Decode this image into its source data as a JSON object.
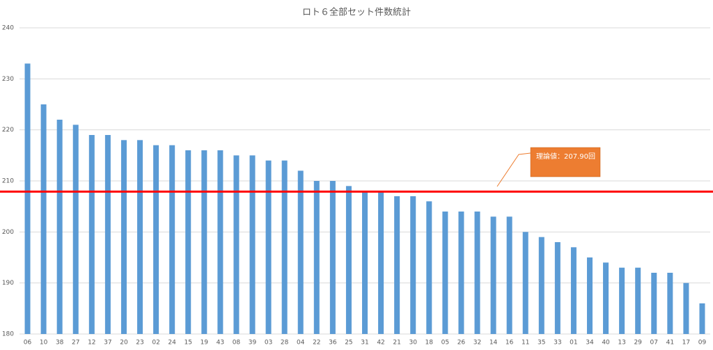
{
  "chart_data": {
    "type": "bar",
    "title": "ロト６全部セット件数統計",
    "categories": [
      "06",
      "10",
      "38",
      "27",
      "12",
      "37",
      "20",
      "23",
      "02",
      "24",
      "15",
      "19",
      "43",
      "08",
      "39",
      "03",
      "28",
      "04",
      "22",
      "36",
      "25",
      "31",
      "42",
      "21",
      "30",
      "18",
      "05",
      "26",
      "32",
      "14",
      "16",
      "11",
      "35",
      "33",
      "01",
      "34",
      "40",
      "13",
      "29",
      "07",
      "41",
      "17",
      "09"
    ],
    "values": [
      233,
      225,
      222,
      221,
      219,
      219,
      218,
      218,
      217,
      217,
      216,
      216,
      216,
      215,
      215,
      214,
      214,
      212,
      210,
      210,
      209,
      208,
      208,
      207,
      207,
      206,
      204,
      204,
      204,
      203,
      203,
      200,
      199,
      198,
      197,
      195,
      194,
      193,
      193,
      192,
      192,
      190,
      186
    ],
    "color": "#5b9bd5",
    "ylim": [
      180,
      240
    ],
    "yticks": [
      180,
      190,
      200,
      210,
      220,
      230,
      240
    ],
    "grid": true,
    "reference_line": {
      "value": 207.9,
      "color": "#ff0000"
    },
    "annotation": {
      "text": "理論値：207.90回",
      "color": "#ed7d31"
    }
  }
}
